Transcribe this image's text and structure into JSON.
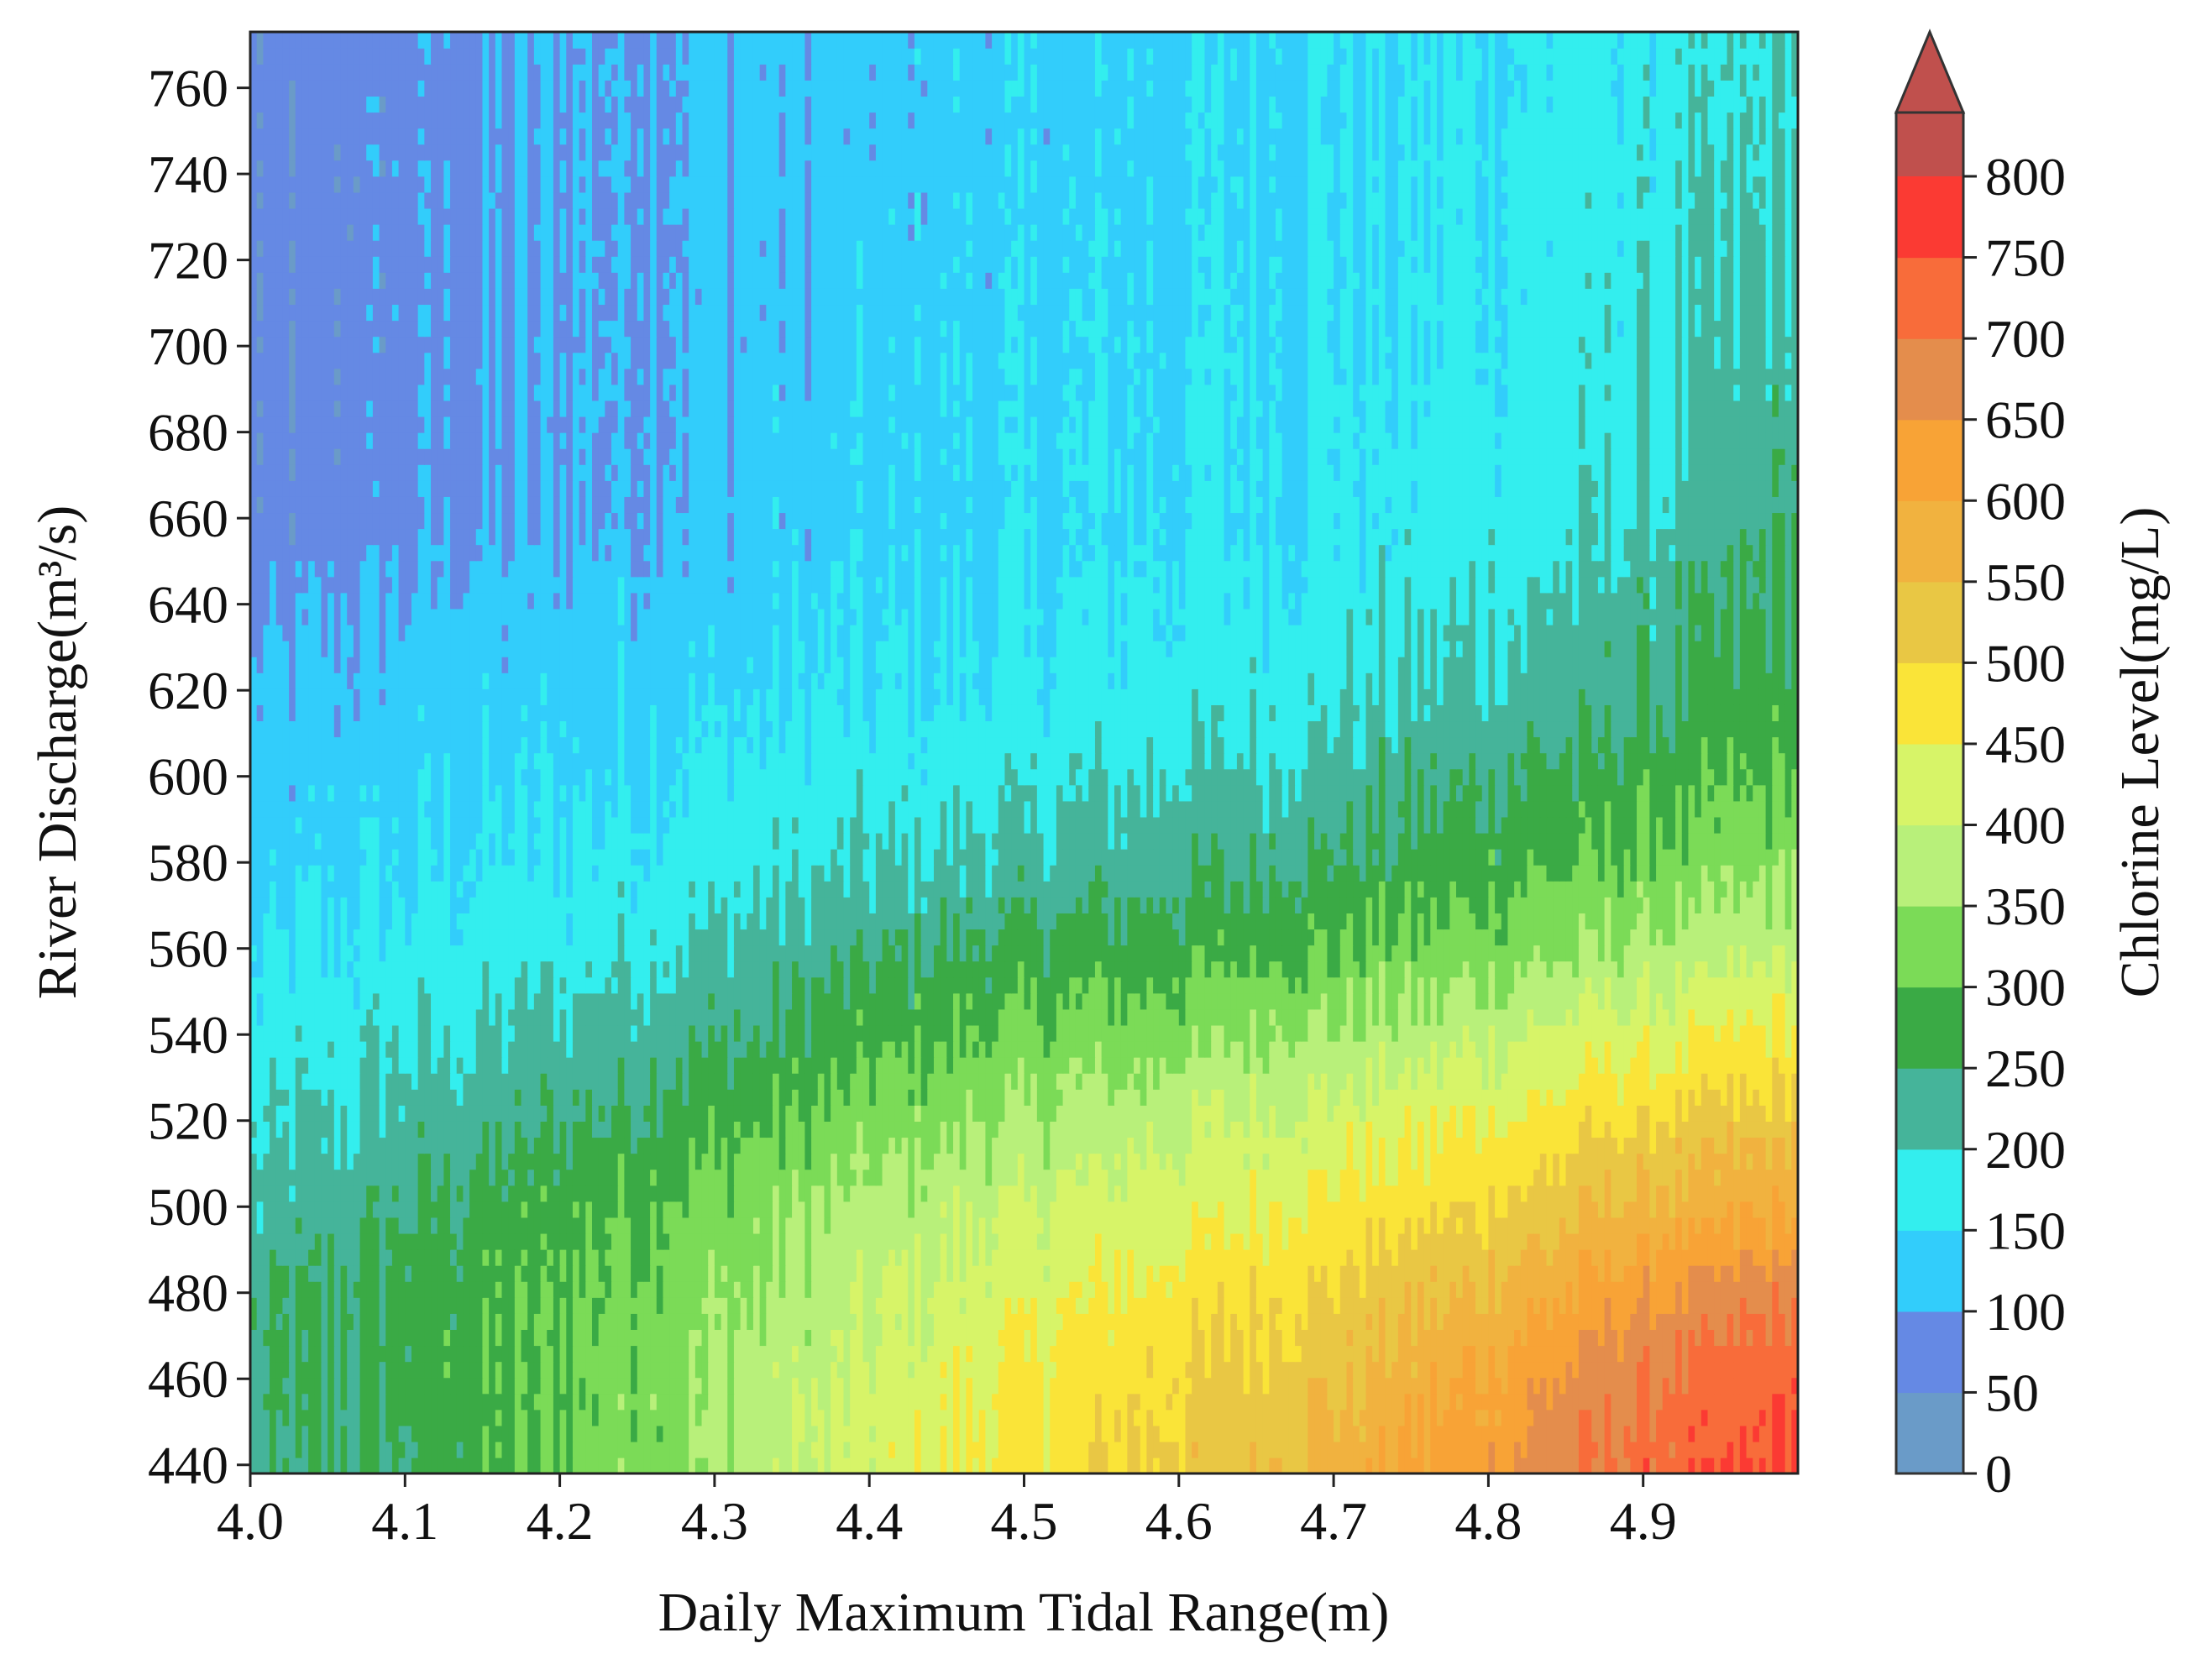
{
  "chart_data": {
    "type": "heatmap",
    "subtype": "filled-contour",
    "title": "",
    "xlabel": "Daily Maximum Tidal Range(m)",
    "ylabel": "River Discharge(m³/s)",
    "xlim": [
      4.0,
      5.0
    ],
    "ylim": [
      438,
      773
    ],
    "x_ticks": [
      4.0,
      4.1,
      4.2,
      4.3,
      4.4,
      4.5,
      4.6,
      4.7,
      4.8,
      4.9
    ],
    "x_tick_labels": [
      "4.0",
      "4.1",
      "4.2",
      "4.3",
      "4.4",
      "4.5",
      "4.6",
      "4.7",
      "4.8",
      "4.9"
    ],
    "y_ticks": [
      440,
      460,
      480,
      500,
      520,
      540,
      560,
      580,
      600,
      620,
      640,
      660,
      680,
      700,
      720,
      740,
      760
    ],
    "y_tick_labels": [
      "440",
      "460",
      "480",
      "500",
      "520",
      "540",
      "560",
      "580",
      "600",
      "620",
      "640",
      "660",
      "680",
      "700",
      "720",
      "740",
      "760"
    ],
    "colorbar": {
      "label": "Chlorine Level(mg/L)",
      "levels": [
        0,
        50,
        100,
        150,
        200,
        250,
        300,
        350,
        400,
        450,
        500,
        550,
        600,
        650,
        700,
        750,
        800
      ],
      "tick_labels": [
        "0",
        "50",
        "100",
        "150",
        "200",
        "250",
        "300",
        "350",
        "400",
        "450",
        "500",
        "550",
        "600",
        "650",
        "700",
        "750",
        "800"
      ],
      "colors": [
        "#6a9bc8",
        "#6589e4",
        "#32cdfb",
        "#33eeee",
        "#45b49a",
        "#3aaa45",
        "#7bdb57",
        "#b8f07a",
        "#d7f468",
        "#fae438",
        "#e9c744",
        "#f1b23f",
        "#f8a336",
        "#e48d4c",
        "#f86c3a",
        "#fb3a33"
      ],
      "extend_max_color": "#c0504d",
      "extend": "max"
    },
    "field_description_rows_y": [
      440,
      460,
      480,
      500,
      520,
      540,
      560,
      580,
      600,
      620,
      640,
      660,
      680,
      700,
      720,
      740,
      760
    ],
    "field_description_cols_x": [
      4.0,
      4.1,
      4.2,
      4.3,
      4.4,
      4.5,
      4.6,
      4.7,
      4.8,
      4.9,
      5.0
    ],
    "values": [
      [
        230,
        260,
        300,
        350,
        420,
        470,
        520,
        570,
        640,
        720,
        760
      ],
      [
        235,
        265,
        305,
        355,
        410,
        460,
        500,
        540,
        610,
        700,
        740
      ],
      [
        235,
        265,
        300,
        340,
        390,
        430,
        470,
        510,
        560,
        640,
        690
      ],
      [
        210,
        250,
        285,
        320,
        365,
        400,
        430,
        460,
        500,
        560,
        600
      ],
      [
        190,
        215,
        245,
        280,
        320,
        355,
        390,
        420,
        450,
        500,
        530
      ],
      [
        165,
        190,
        215,
        245,
        280,
        310,
        335,
        360,
        390,
        430,
        460
      ],
      [
        140,
        165,
        180,
        205,
        240,
        265,
        280,
        300,
        325,
        360,
        390
      ],
      [
        130,
        145,
        160,
        180,
        200,
        215,
        235,
        255,
        280,
        310,
        340
      ],
      [
        120,
        130,
        145,
        160,
        175,
        185,
        200,
        220,
        250,
        270,
        300
      ],
      [
        110,
        120,
        130,
        140,
        150,
        160,
        175,
        190,
        210,
        240,
        275
      ],
      [
        80,
        110,
        120,
        130,
        140,
        150,
        160,
        175,
        195,
        225,
        260
      ],
      [
        60,
        80,
        100,
        115,
        130,
        140,
        150,
        160,
        175,
        200,
        245
      ],
      [
        60,
        80,
        100,
        115,
        130,
        140,
        150,
        160,
        170,
        190,
        235
      ],
      [
        60,
        80,
        100,
        110,
        125,
        135,
        150,
        155,
        165,
        185,
        225
      ],
      [
        60,
        80,
        100,
        110,
        125,
        135,
        145,
        150,
        160,
        180,
        215
      ],
      [
        60,
        80,
        100,
        110,
        120,
        130,
        140,
        150,
        160,
        175,
        205
      ],
      [
        60,
        80,
        100,
        110,
        120,
        130,
        140,
        150,
        155,
        170,
        200
      ]
    ]
  }
}
